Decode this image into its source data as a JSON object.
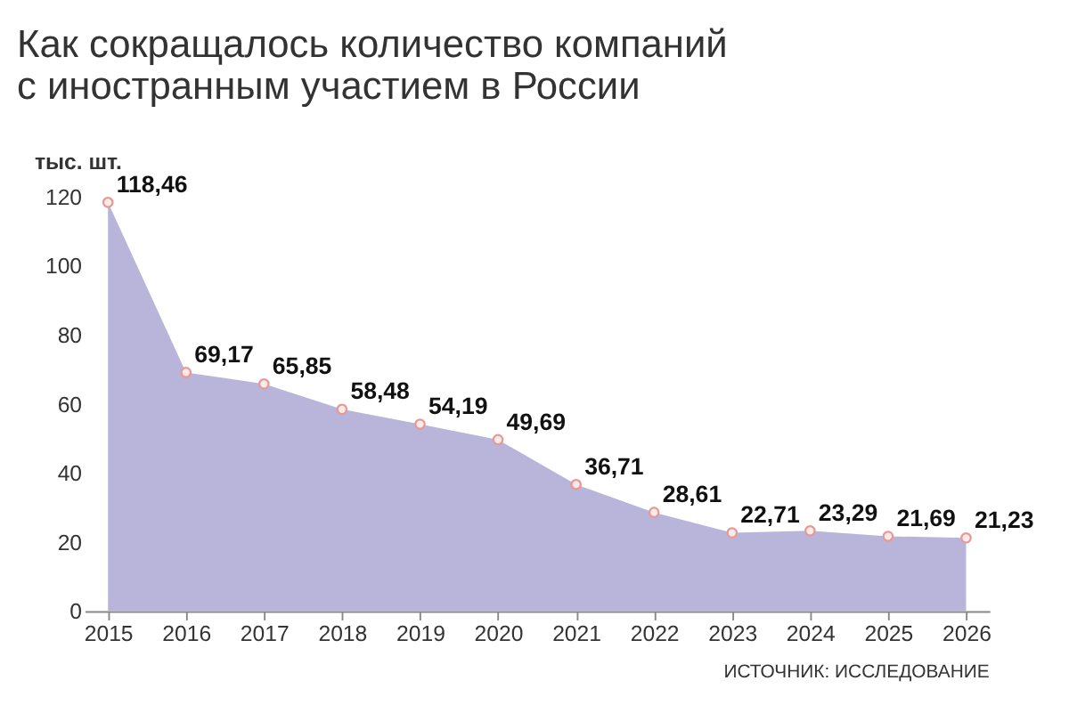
{
  "chart_data": {
    "type": "area",
    "title": "Как сокращалось количество компаний с иностранным участием в России",
    "ylabel": "тыс. шт.",
    "categories": [
      "2015",
      "2016",
      "2017",
      "2018",
      "2019",
      "2020",
      "2021",
      "2022",
      "2023",
      "2024",
      "2025",
      "2026"
    ],
    "series": [
      {
        "color": "#b9b5da",
        "values": [
          118.46,
          69.17,
          65.85,
          58.48,
          54.19,
          49.69,
          36.71,
          28.61,
          22.71,
          23.29,
          21.69,
          21.23
        ]
      }
    ],
    "value_labels": [
      "118,46",
      "69,17",
      "65,85",
      "58,48",
      "54,19",
      "49,69",
      "36,71",
      "28,61",
      "22,71",
      "23,29",
      "21,69",
      "21,23"
    ],
    "ylim": [
      0,
      120
    ],
    "yticks": [
      0,
      20,
      40,
      60,
      80,
      100,
      120
    ],
    "grid": false,
    "marker": "circle",
    "annotations": [
      "ИСТОЧНИК: ИССЛЕДОВАНИЕ"
    ]
  }
}
